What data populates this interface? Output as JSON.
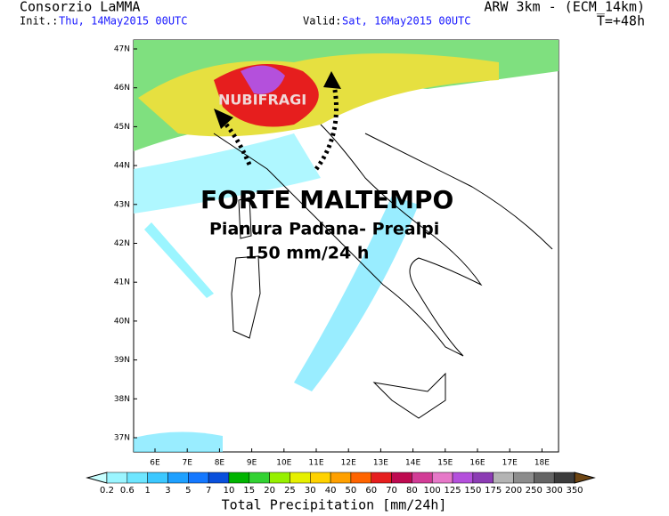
{
  "header": {
    "org": "Consorzio LaMMA",
    "init_label": "Init.:",
    "init": "Thu, 14May2015 00UTC",
    "valid_label": "Valid:",
    "valid": "Sat, 16May2015 00UTC",
    "model": "ARW 3km - (ECM_14km)",
    "lead": "T=+48h"
  },
  "overlay": {
    "storm": "NUBIFRAGI",
    "headline": "FORTE MALTEMPO",
    "area": "Pianura Padana- Prealpi",
    "amount": "150 mm/24 h"
  },
  "map": {
    "lon_labels": [
      "6E",
      "7E",
      "8E",
      "9E",
      "10E",
      "11E",
      "12E",
      "13E",
      "14E",
      "15E",
      "16E",
      "17E",
      "18E"
    ],
    "lat_labels": [
      "47N",
      "46N",
      "45N",
      "44N",
      "43N",
      "42N",
      "41N",
      "40N",
      "39N",
      "38N",
      "37N"
    ]
  },
  "colorbar": {
    "title": "Total Precipitation [mm/24h]",
    "labels": [
      "0.2",
      "0.6",
      "1",
      "3",
      "5",
      "7",
      "10",
      "15",
      "20",
      "25",
      "30",
      "40",
      "50",
      "60",
      "70",
      "80",
      "100",
      "125",
      "150",
      "175",
      "200",
      "250",
      "300",
      "350"
    ],
    "colors": [
      "#c8ffff",
      "#9bf5ff",
      "#6ee6ff",
      "#3cc8ff",
      "#1ea0ff",
      "#1478ff",
      "#0a50dc",
      "#00b400",
      "#32d232",
      "#96f000",
      "#e6f000",
      "#ffd200",
      "#ffa000",
      "#ff6400",
      "#e61e1e",
      "#be0a50",
      "#d23c96",
      "#e678c8",
      "#b450dc",
      "#8c3cb4",
      "#b4b4b4",
      "#8c8c8c",
      "#646464",
      "#3c3c3c",
      "#6e4614"
    ]
  }
}
